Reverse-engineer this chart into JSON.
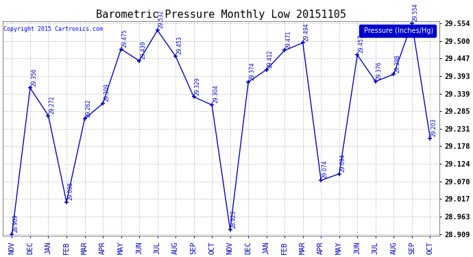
{
  "title": "Barometric Pressure Monthly Low 20151105",
  "copyright": "Copyright 2015 Cartronics.com",
  "legend_label": "Pressure (Inches/Hg)",
  "x_labels": [
    "NOV",
    "DEC",
    "JAN",
    "FEB",
    "MAR",
    "APR",
    "MAY",
    "JUN",
    "JUL",
    "AUG",
    "SEP",
    "OCT",
    "NOV",
    "DEC",
    "JAN",
    "FEB",
    "MAR",
    "APR",
    "MAY",
    "JUN",
    "JUL",
    "AUG",
    "SEP",
    "OCT"
  ],
  "y_values": [
    28.909,
    29.356,
    29.272,
    29.008,
    29.262,
    29.309,
    29.475,
    29.439,
    29.532,
    29.453,
    29.329,
    29.304,
    28.923,
    29.374,
    29.412,
    29.471,
    29.494,
    29.074,
    29.094,
    29.457,
    29.376,
    29.398,
    29.554,
    29.203
  ],
  "line_color": "#0000cc",
  "marker_color": "#0000cc",
  "bg_color": "#ffffff",
  "grid_color": "#c8c8c8",
  "title_fontsize": 11,
  "tick_fontsize": 7.5,
  "ylim_min": 28.909,
  "ylim_max": 29.554,
  "yticks": [
    28.909,
    28.963,
    29.017,
    29.07,
    29.124,
    29.178,
    29.231,
    29.285,
    29.339,
    29.393,
    29.447,
    29.5,
    29.554
  ]
}
